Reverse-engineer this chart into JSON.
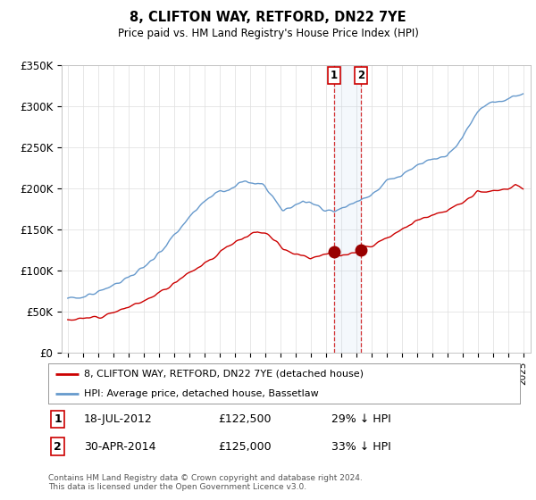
{
  "title": "8, CLIFTON WAY, RETFORD, DN22 7YE",
  "subtitle": "Price paid vs. HM Land Registry's House Price Index (HPI)",
  "legend_line1": "8, CLIFTON WAY, RETFORD, DN22 7YE (detached house)",
  "legend_line2": "HPI: Average price, detached house, Bassetlaw",
  "sale1_date": "18-JUL-2012",
  "sale1_price": "£122,500",
  "sale1_hpi": "29% ↓ HPI",
  "sale2_date": "30-APR-2014",
  "sale2_price": "£125,000",
  "sale2_hpi": "33% ↓ HPI",
  "footer": "Contains HM Land Registry data © Crown copyright and database right 2024.\nThis data is licensed under the Open Government Licence v3.0.",
  "hpi_color": "#6699cc",
  "price_color": "#cc0000",
  "sale_marker_color": "#990000",
  "ylim": [
    0,
    350000
  ],
  "yticks": [
    0,
    50000,
    100000,
    150000,
    200000,
    250000,
    300000,
    350000
  ],
  "sale1_year": 2012.54,
  "sale2_year": 2014.33,
  "sale1_price_val": 122500,
  "sale2_price_val": 125000,
  "xstart": 1995,
  "xend": 2025
}
